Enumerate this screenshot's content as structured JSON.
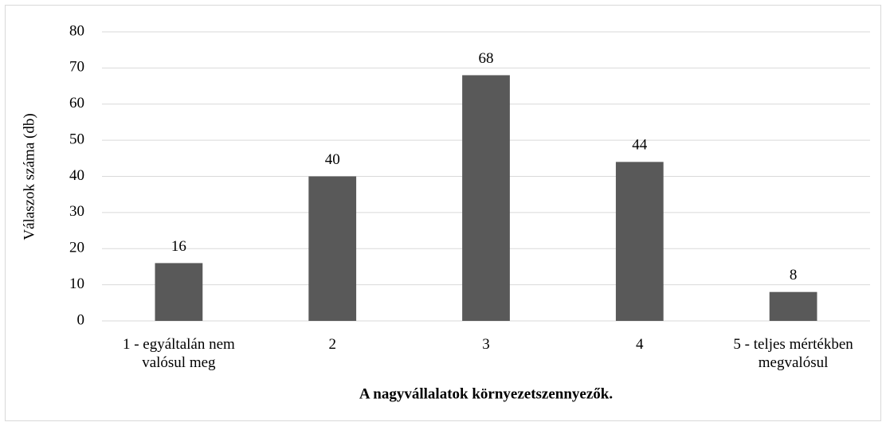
{
  "chart_data": {
    "type": "bar",
    "categories": [
      "1 - egyáltalán nem valósul meg",
      "2",
      "3",
      "4",
      "5 - teljes mértékben megvalósul"
    ],
    "values": [
      16,
      40,
      68,
      44,
      8
    ],
    "color": "#595959",
    "ylim": [
      0,
      80
    ],
    "yticks": [
      0,
      10,
      20,
      30,
      40,
      50,
      60,
      70,
      80
    ],
    "grid": true,
    "y_label": "Válaszok száma (db)",
    "x_label": "A nagyvállalatok környezetszennyezők."
  }
}
